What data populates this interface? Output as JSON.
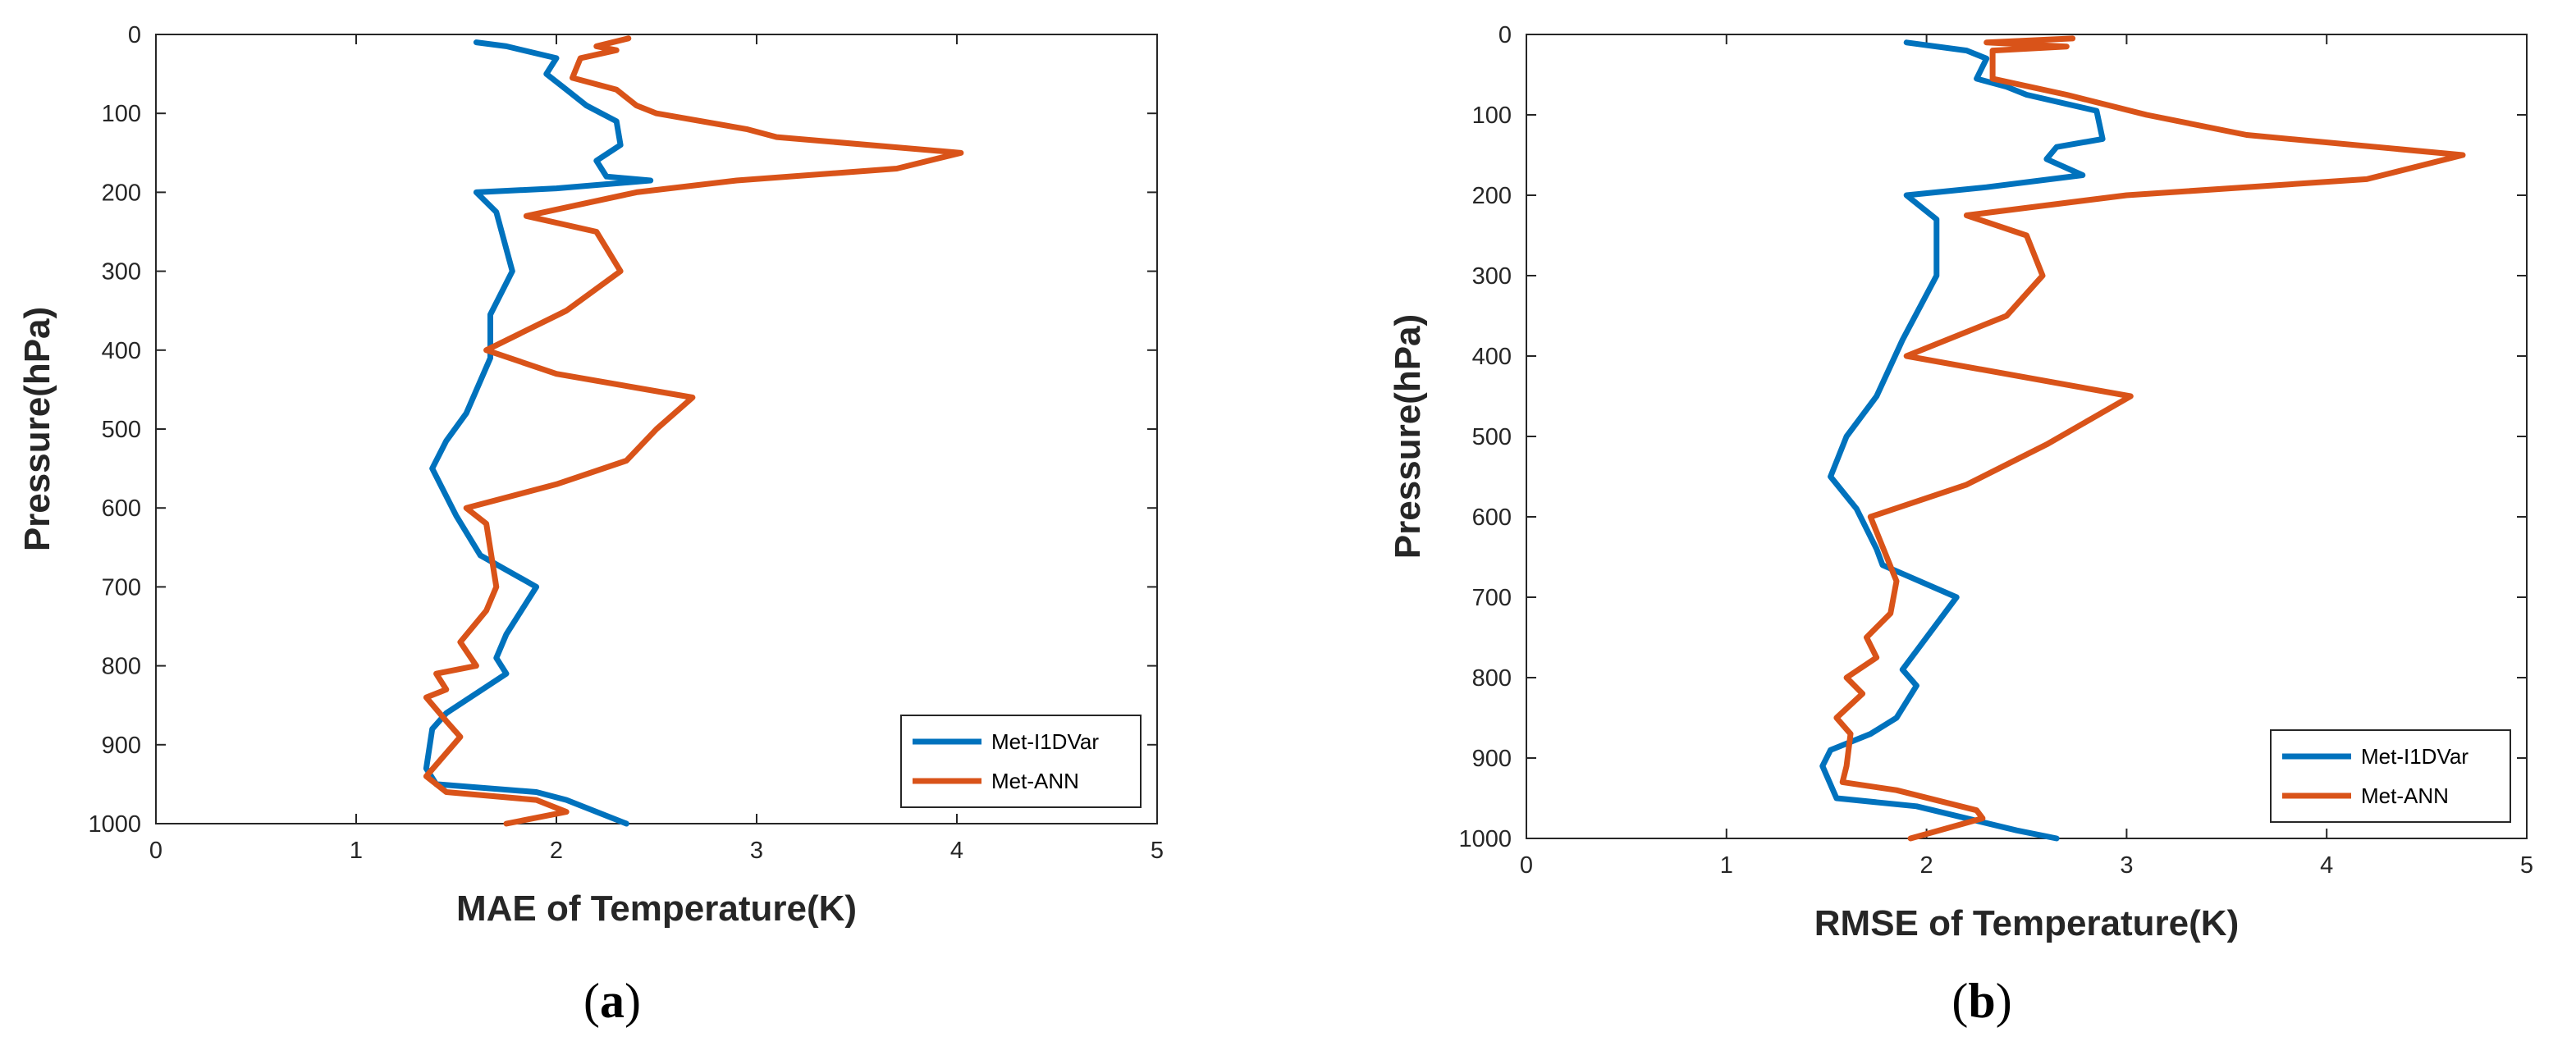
{
  "chart_data": [
    {
      "type": "line",
      "panel_label": "(a)",
      "panel_letter": "a",
      "xlabel": "MAE of Temperature(K)",
      "ylabel": "Pressure(hPa)",
      "xlim": [
        0,
        5
      ],
      "ylim": [
        0,
        1000
      ],
      "y_reversed": true,
      "xticks": [
        "0",
        "1",
        "2",
        "3",
        "4",
        "5"
      ],
      "yticks": [
        "0",
        "100",
        "200",
        "300",
        "400",
        "500",
        "600",
        "700",
        "800",
        "900",
        "1000"
      ],
      "legend_position": "lower-right",
      "series": [
        {
          "name": "Met-I1DVar",
          "color": "#0072BD",
          "points": [
            [
              1.6,
              10
            ],
            [
              1.75,
              15
            ],
            [
              2.0,
              30
            ],
            [
              1.95,
              50
            ],
            [
              2.05,
              70
            ],
            [
              2.15,
              90
            ],
            [
              2.3,
              110
            ],
            [
              2.32,
              140
            ],
            [
              2.2,
              160
            ],
            [
              2.25,
              180
            ],
            [
              2.47,
              185
            ],
            [
              2.0,
              195
            ],
            [
              1.6,
              200
            ],
            [
              1.7,
              225
            ],
            [
              1.78,
              300
            ],
            [
              1.67,
              355
            ],
            [
              1.67,
              410
            ],
            [
              1.55,
              480
            ],
            [
              1.45,
              515
            ],
            [
              1.38,
              550
            ],
            [
              1.5,
              610
            ],
            [
              1.62,
              660
            ],
            [
              1.9,
              700
            ],
            [
              1.75,
              760
            ],
            [
              1.7,
              790
            ],
            [
              1.75,
              810
            ],
            [
              1.45,
              860
            ],
            [
              1.38,
              880
            ],
            [
              1.35,
              930
            ],
            [
              1.4,
              950
            ],
            [
              1.9,
              960
            ],
            [
              2.05,
              970
            ],
            [
              2.35,
              1000
            ]
          ]
        },
        {
          "name": "Met-ANN",
          "color": "#D95319",
          "points": [
            [
              2.36,
              5
            ],
            [
              2.2,
              15
            ],
            [
              2.3,
              20
            ],
            [
              2.12,
              30
            ],
            [
              2.08,
              55
            ],
            [
              2.3,
              70
            ],
            [
              2.4,
              90
            ],
            [
              2.5,
              100
            ],
            [
              2.95,
              120
            ],
            [
              3.1,
              130
            ],
            [
              4.02,
              150
            ],
            [
              3.7,
              170
            ],
            [
              2.9,
              185
            ],
            [
              2.4,
              200
            ],
            [
              1.85,
              230
            ],
            [
              2.2,
              250
            ],
            [
              2.32,
              300
            ],
            [
              2.05,
              350
            ],
            [
              1.65,
              400
            ],
            [
              2.0,
              430
            ],
            [
              2.68,
              460
            ],
            [
              2.5,
              500
            ],
            [
              2.35,
              540
            ],
            [
              2.0,
              570
            ],
            [
              1.55,
              600
            ],
            [
              1.65,
              620
            ],
            [
              1.7,
              700
            ],
            [
              1.65,
              730
            ],
            [
              1.52,
              770
            ],
            [
              1.6,
              800
            ],
            [
              1.4,
              810
            ],
            [
              1.45,
              830
            ],
            [
              1.35,
              840
            ],
            [
              1.45,
              870
            ],
            [
              1.52,
              890
            ],
            [
              1.35,
              940
            ],
            [
              1.45,
              960
            ],
            [
              1.9,
              970
            ],
            [
              2.05,
              985
            ],
            [
              1.75,
              1000
            ]
          ]
        }
      ]
    },
    {
      "type": "line",
      "panel_label": "(b)",
      "panel_letter": "b",
      "xlabel": "RMSE of Temperature(K)",
      "ylabel": "Pressure(hPa)",
      "xlim": [
        0,
        5
      ],
      "ylim": [
        0,
        1000
      ],
      "y_reversed": true,
      "xticks": [
        "0",
        "1",
        "2",
        "3",
        "4",
        "5"
      ],
      "yticks": [
        "0",
        "100",
        "200",
        "300",
        "400",
        "500",
        "600",
        "700",
        "800",
        "900",
        "1000"
      ],
      "legend_position": "lower-right",
      "series": [
        {
          "name": "Met-I1DVar",
          "color": "#0072BD",
          "points": [
            [
              1.9,
              10
            ],
            [
              2.2,
              20
            ],
            [
              2.3,
              30
            ],
            [
              2.25,
              55
            ],
            [
              2.4,
              65
            ],
            [
              2.5,
              75
            ],
            [
              2.85,
              95
            ],
            [
              2.88,
              130
            ],
            [
              2.65,
              140
            ],
            [
              2.6,
              155
            ],
            [
              2.78,
              175
            ],
            [
              2.3,
              190
            ],
            [
              1.9,
              200
            ],
            [
              2.05,
              230
            ],
            [
              2.05,
              300
            ],
            [
              1.88,
              380
            ],
            [
              1.75,
              450
            ],
            [
              1.6,
              500
            ],
            [
              1.52,
              550
            ],
            [
              1.65,
              590
            ],
            [
              1.75,
              640
            ],
            [
              1.78,
              660
            ],
            [
              2.15,
              700
            ],
            [
              1.88,
              790
            ],
            [
              1.95,
              810
            ],
            [
              1.85,
              850
            ],
            [
              1.72,
              870
            ],
            [
              1.52,
              890
            ],
            [
              1.48,
              910
            ],
            [
              1.55,
              950
            ],
            [
              1.95,
              960
            ],
            [
              2.45,
              990
            ],
            [
              2.65,
              1000
            ]
          ]
        },
        {
          "name": "Met-ANN",
          "color": "#D95319",
          "points": [
            [
              2.73,
              5
            ],
            [
              2.3,
              10
            ],
            [
              2.7,
              15
            ],
            [
              2.33,
              20
            ],
            [
              2.33,
              55
            ],
            [
              2.7,
              75
            ],
            [
              3.1,
              100
            ],
            [
              3.6,
              125
            ],
            [
              4.68,
              150
            ],
            [
              4.2,
              180
            ],
            [
              3.0,
              200
            ],
            [
              2.2,
              225
            ],
            [
              2.5,
              250
            ],
            [
              2.58,
              300
            ],
            [
              2.4,
              350
            ],
            [
              1.9,
              400
            ],
            [
              3.02,
              450
            ],
            [
              2.6,
              510
            ],
            [
              2.2,
              560
            ],
            [
              1.72,
              600
            ],
            [
              1.85,
              680
            ],
            [
              1.82,
              720
            ],
            [
              1.7,
              750
            ],
            [
              1.75,
              775
            ],
            [
              1.6,
              800
            ],
            [
              1.68,
              820
            ],
            [
              1.55,
              850
            ],
            [
              1.62,
              870
            ],
            [
              1.6,
              910
            ],
            [
              1.58,
              930
            ],
            [
              1.85,
              940
            ],
            [
              2.25,
              965
            ],
            [
              2.28,
              975
            ],
            [
              1.92,
              1000
            ]
          ]
        }
      ]
    }
  ]
}
